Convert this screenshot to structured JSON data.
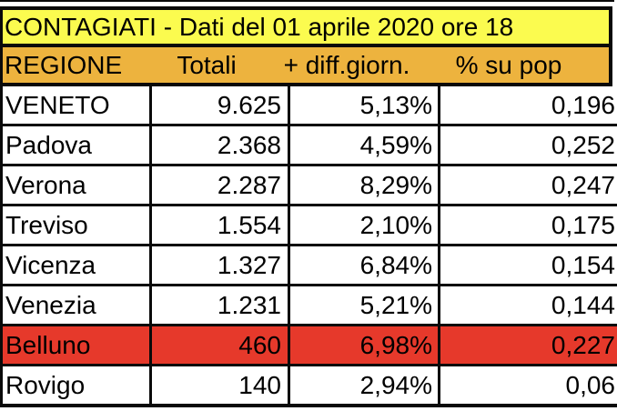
{
  "title": {
    "text": "CONTAGIATI - Dati del 01 aprile 2020 ore 18"
  },
  "header": {
    "columns": [
      "REGIONE",
      "Totali",
      "+ diff.giorn.",
      "% su pop"
    ]
  },
  "rows": [
    {
      "regione": "VENETO",
      "totali": "9.625",
      "diff_giorn": "5,13%",
      "pct_pop": "0,196",
      "highlighted": false
    },
    {
      "regione": "Padova",
      "totali": "2.368",
      "diff_giorn": "4,59%",
      "pct_pop": "0,252",
      "highlighted": false
    },
    {
      "regione": "Verona",
      "totali": "2.287",
      "diff_giorn": "8,29%",
      "pct_pop": "0,247",
      "highlighted": false
    },
    {
      "regione": "Treviso",
      "totali": "1.554",
      "diff_giorn": "2,10%",
      "pct_pop": "0,175",
      "highlighted": false
    },
    {
      "regione": "Vicenza",
      "totali": "1.327",
      "diff_giorn": "6,84%",
      "pct_pop": "0,154",
      "highlighted": false
    },
    {
      "regione": "Venezia",
      "totali": "1.231",
      "diff_giorn": "5,21%",
      "pct_pop": "0,144",
      "highlighted": false
    },
    {
      "regione": "Belluno",
      "totali": "460",
      "diff_giorn": "6,98%",
      "pct_pop": "0,227",
      "highlighted": true
    },
    {
      "regione": "Rovigo",
      "totali": "140",
      "diff_giorn": "2,94%",
      "pct_pop": "0,06",
      "highlighted": false
    }
  ],
  "colors": {
    "title_bg": "#fbfb4f",
    "header_bg": "#edb33e",
    "highlight_row_bg": "#e6392b",
    "border": "#0a0a0a",
    "text": "#000000"
  },
  "chart_data": {
    "type": "table",
    "title": "CONTAGIATI - Dati del 01 aprile 2020 ore 18",
    "columns": [
      "REGIONE",
      "Totali",
      "+ diff.giorn.",
      "% su pop"
    ],
    "rows": [
      [
        "VENETO",
        "9.625",
        "5,13%",
        "0,196"
      ],
      [
        "Padova",
        "2.368",
        "4,59%",
        "0,252"
      ],
      [
        "Verona",
        "2.287",
        "8,29%",
        "0,247"
      ],
      [
        "Treviso",
        "1.554",
        "2,10%",
        "0,175"
      ],
      [
        "Vicenza",
        "1.327",
        "6,84%",
        "0,154"
      ],
      [
        "Venezia",
        "1.231",
        "5,21%",
        "0,144"
      ],
      [
        "Belluno",
        "460",
        "6,98%",
        "0,227"
      ],
      [
        "Rovigo",
        "140",
        "2,94%",
        "0,06"
      ]
    ],
    "highlighted_row": "Belluno",
    "notes": "Belluno row filled red; title row yellow; header row amber; table clipped at right edge"
  }
}
